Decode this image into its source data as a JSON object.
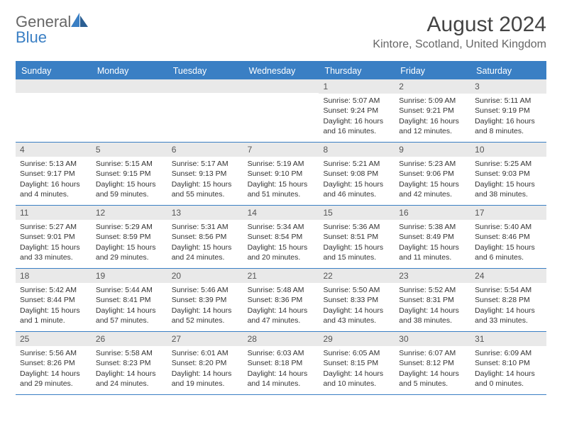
{
  "brand": {
    "top": "General",
    "bottom": "Blue"
  },
  "title": "August 2024",
  "location": "Kintore, Scotland, United Kingdom",
  "colors": {
    "accent": "#3a7fc4",
    "dow_bg": "#3a7fc4",
    "dow_text": "#ffffff",
    "daynum_bg": "#e9e9e9",
    "text": "#333333",
    "background": "#ffffff"
  },
  "days_of_week": [
    "Sunday",
    "Monday",
    "Tuesday",
    "Wednesday",
    "Thursday",
    "Friday",
    "Saturday"
  ],
  "weeks": [
    [
      {
        "n": null
      },
      {
        "n": null
      },
      {
        "n": null
      },
      {
        "n": null
      },
      {
        "n": 1,
        "sunrise": "5:07 AM",
        "sunset": "9:24 PM",
        "daylight": "16 hours and 16 minutes."
      },
      {
        "n": 2,
        "sunrise": "5:09 AM",
        "sunset": "9:21 PM",
        "daylight": "16 hours and 12 minutes."
      },
      {
        "n": 3,
        "sunrise": "5:11 AM",
        "sunset": "9:19 PM",
        "daylight": "16 hours and 8 minutes."
      }
    ],
    [
      {
        "n": 4,
        "sunrise": "5:13 AM",
        "sunset": "9:17 PM",
        "daylight": "16 hours and 4 minutes."
      },
      {
        "n": 5,
        "sunrise": "5:15 AM",
        "sunset": "9:15 PM",
        "daylight": "15 hours and 59 minutes."
      },
      {
        "n": 6,
        "sunrise": "5:17 AM",
        "sunset": "9:13 PM",
        "daylight": "15 hours and 55 minutes."
      },
      {
        "n": 7,
        "sunrise": "5:19 AM",
        "sunset": "9:10 PM",
        "daylight": "15 hours and 51 minutes."
      },
      {
        "n": 8,
        "sunrise": "5:21 AM",
        "sunset": "9:08 PM",
        "daylight": "15 hours and 46 minutes."
      },
      {
        "n": 9,
        "sunrise": "5:23 AM",
        "sunset": "9:06 PM",
        "daylight": "15 hours and 42 minutes."
      },
      {
        "n": 10,
        "sunrise": "5:25 AM",
        "sunset": "9:03 PM",
        "daylight": "15 hours and 38 minutes."
      }
    ],
    [
      {
        "n": 11,
        "sunrise": "5:27 AM",
        "sunset": "9:01 PM",
        "daylight": "15 hours and 33 minutes."
      },
      {
        "n": 12,
        "sunrise": "5:29 AM",
        "sunset": "8:59 PM",
        "daylight": "15 hours and 29 minutes."
      },
      {
        "n": 13,
        "sunrise": "5:31 AM",
        "sunset": "8:56 PM",
        "daylight": "15 hours and 24 minutes."
      },
      {
        "n": 14,
        "sunrise": "5:34 AM",
        "sunset": "8:54 PM",
        "daylight": "15 hours and 20 minutes."
      },
      {
        "n": 15,
        "sunrise": "5:36 AM",
        "sunset": "8:51 PM",
        "daylight": "15 hours and 15 minutes."
      },
      {
        "n": 16,
        "sunrise": "5:38 AM",
        "sunset": "8:49 PM",
        "daylight": "15 hours and 11 minutes."
      },
      {
        "n": 17,
        "sunrise": "5:40 AM",
        "sunset": "8:46 PM",
        "daylight": "15 hours and 6 minutes."
      }
    ],
    [
      {
        "n": 18,
        "sunrise": "5:42 AM",
        "sunset": "8:44 PM",
        "daylight": "15 hours and 1 minute."
      },
      {
        "n": 19,
        "sunrise": "5:44 AM",
        "sunset": "8:41 PM",
        "daylight": "14 hours and 57 minutes."
      },
      {
        "n": 20,
        "sunrise": "5:46 AM",
        "sunset": "8:39 PM",
        "daylight": "14 hours and 52 minutes."
      },
      {
        "n": 21,
        "sunrise": "5:48 AM",
        "sunset": "8:36 PM",
        "daylight": "14 hours and 47 minutes."
      },
      {
        "n": 22,
        "sunrise": "5:50 AM",
        "sunset": "8:33 PM",
        "daylight": "14 hours and 43 minutes."
      },
      {
        "n": 23,
        "sunrise": "5:52 AM",
        "sunset": "8:31 PM",
        "daylight": "14 hours and 38 minutes."
      },
      {
        "n": 24,
        "sunrise": "5:54 AM",
        "sunset": "8:28 PM",
        "daylight": "14 hours and 33 minutes."
      }
    ],
    [
      {
        "n": 25,
        "sunrise": "5:56 AM",
        "sunset": "8:26 PM",
        "daylight": "14 hours and 29 minutes."
      },
      {
        "n": 26,
        "sunrise": "5:58 AM",
        "sunset": "8:23 PM",
        "daylight": "14 hours and 24 minutes."
      },
      {
        "n": 27,
        "sunrise": "6:01 AM",
        "sunset": "8:20 PM",
        "daylight": "14 hours and 19 minutes."
      },
      {
        "n": 28,
        "sunrise": "6:03 AM",
        "sunset": "8:18 PM",
        "daylight": "14 hours and 14 minutes."
      },
      {
        "n": 29,
        "sunrise": "6:05 AM",
        "sunset": "8:15 PM",
        "daylight": "14 hours and 10 minutes."
      },
      {
        "n": 30,
        "sunrise": "6:07 AM",
        "sunset": "8:12 PM",
        "daylight": "14 hours and 5 minutes."
      },
      {
        "n": 31,
        "sunrise": "6:09 AM",
        "sunset": "8:10 PM",
        "daylight": "14 hours and 0 minutes."
      }
    ]
  ],
  "labels": {
    "sunrise_prefix": "Sunrise: ",
    "sunset_prefix": "Sunset: ",
    "daylight_prefix": "Daylight: "
  }
}
